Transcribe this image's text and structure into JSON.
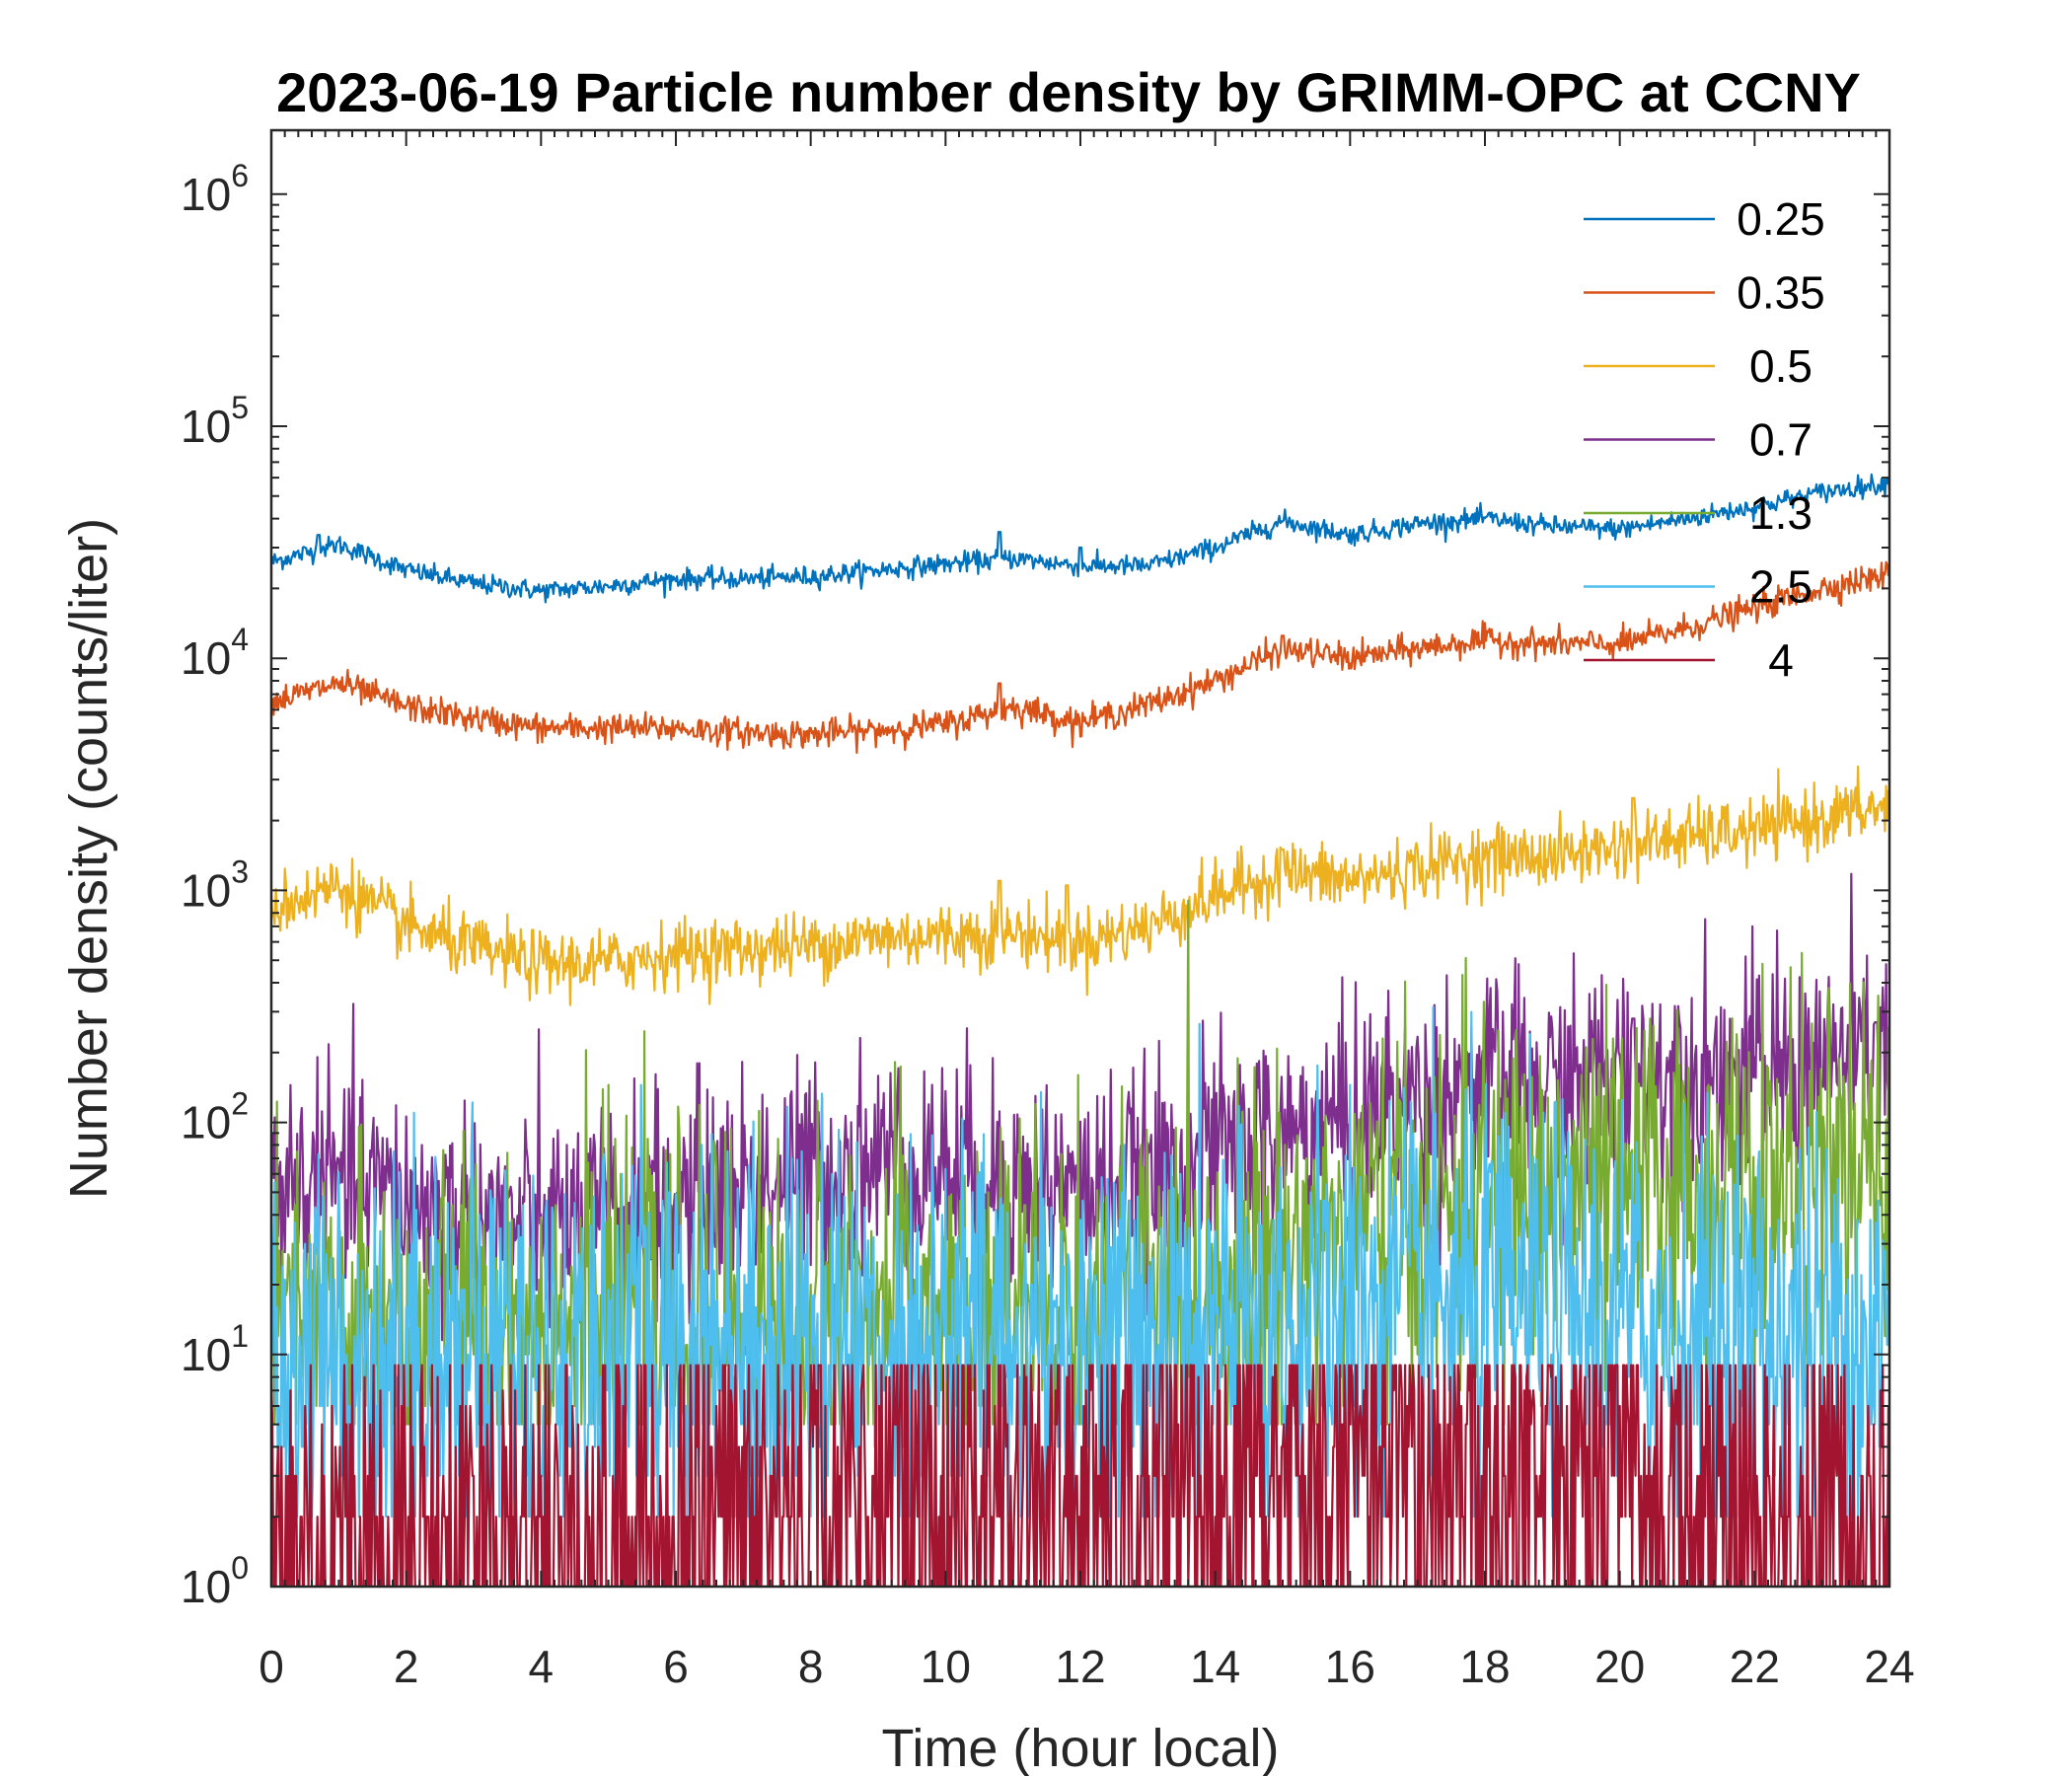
{
  "chart_data": {
    "type": "line",
    "title": "2023-06-19 Particle number density by GRIMM-OPC at CCNY",
    "xlabel": "Time (hour local)",
    "ylabel": "Number density (counts/liter)",
    "xlim": [
      0,
      24
    ],
    "ylim": [
      1,
      2000000
    ],
    "yscale": "log",
    "xticks": [
      0,
      2,
      4,
      6,
      8,
      10,
      12,
      14,
      16,
      18,
      20,
      22,
      24
    ],
    "xtick_labels": [
      "0",
      "2",
      "4",
      "6",
      "8",
      "10",
      "12",
      "14",
      "16",
      "18",
      "20",
      "22",
      "24"
    ],
    "yticks": [
      {
        "value": 1,
        "base": "10",
        "exp": "0"
      },
      {
        "value": 10,
        "base": "10",
        "exp": "1"
      },
      {
        "value": 100,
        "base": "10",
        "exp": "2"
      },
      {
        "value": 1000,
        "base": "10",
        "exp": "3"
      },
      {
        "value": 10000,
        "base": "10",
        "exp": "4"
      },
      {
        "value": 100000,
        "base": "10",
        "exp": "5"
      },
      {
        "value": 1000000,
        "base": "10",
        "exp": "6"
      }
    ],
    "legend_position": "top-right",
    "series": [
      {
        "name": "0.25",
        "color": "#0072BD",
        "noise": 0.05,
        "spikes": [
          [
            0.7,
            34000
          ],
          [
            10.8,
            35000
          ],
          [
            12.0,
            30000
          ]
        ],
        "x": [
          0,
          1,
          2,
          3,
          4,
          5,
          6,
          7,
          8,
          9,
          10,
          11,
          12,
          13,
          14,
          15,
          16,
          17,
          18,
          19,
          20,
          21,
          22,
          23,
          24
        ],
        "values": [
          26000,
          31000,
          24000,
          21000,
          19500,
          20500,
          22000,
          22000,
          22500,
          24000,
          25500,
          27000,
          25000,
          25000,
          30000,
          39000,
          34000,
          38000,
          40000,
          37000,
          36000,
          40000,
          45000,
          52000,
          57000
        ]
      },
      {
        "name": "0.35",
        "color": "#D95319",
        "noise": 0.07,
        "spikes": [
          [
            10.8,
            7800
          ],
          [
            15.0,
            12500
          ]
        ],
        "x": [
          0,
          1,
          2,
          3,
          4,
          5,
          6,
          7,
          8,
          9,
          10,
          11,
          12,
          13,
          14,
          15,
          16,
          17,
          18,
          19,
          20,
          21,
          22,
          23,
          24
        ],
        "values": [
          6500,
          7800,
          6200,
          5500,
          5000,
          5000,
          5000,
          4800,
          4700,
          4900,
          5200,
          6200,
          5300,
          6300,
          8000,
          11000,
          10000,
          11000,
          12000,
          11500,
          11500,
          13500,
          16500,
          20000,
          23000
        ]
      },
      {
        "name": "0.5",
        "color": "#EDB120",
        "noise": 0.16,
        "spikes": [
          [
            10.8,
            1100
          ],
          [
            11.8,
            1050
          ],
          [
            15.0,
            1500
          ],
          [
            20.2,
            2500
          ]
        ],
        "x": [
          0,
          1,
          2,
          3,
          4,
          5,
          6,
          7,
          8,
          9,
          10,
          11,
          12,
          13,
          14,
          15,
          16,
          17,
          18,
          19,
          20,
          21,
          22,
          23,
          24
        ],
        "values": [
          850,
          1050,
          700,
          560,
          480,
          490,
          540,
          560,
          580,
          630,
          640,
          660,
          600,
          700,
          950,
          1200,
          1100,
          1250,
          1400,
          1400,
          1550,
          1700,
          1800,
          2050,
          2300
        ]
      },
      {
        "name": "0.7",
        "color": "#7E2F8E",
        "noise": 0.55,
        "spikes": [
          [
            20.2,
            280
          ],
          [
            23.8,
            270
          ]
        ],
        "x": [
          0,
          1,
          2,
          3,
          4,
          5,
          6,
          7,
          8,
          9,
          10,
          11,
          12,
          13,
          14,
          15,
          16,
          17,
          18,
          19,
          20,
          21,
          22,
          23,
          24
        ],
        "values": [
          55,
          55,
          45,
          38,
          35,
          40,
          45,
          55,
          60,
          70,
          65,
          55,
          50,
          55,
          75,
          85,
          105,
          130,
          145,
          140,
          160,
          170,
          165,
          185,
          200
        ]
      },
      {
        "name": "1.3",
        "color": "#77AC30",
        "noise": 0.9,
        "floor": 5,
        "x": [
          0,
          2,
          4,
          6,
          8,
          10,
          12,
          14,
          16,
          18,
          20,
          22,
          24
        ],
        "values": [
          12,
          13,
          14,
          14,
          15,
          15,
          16,
          20,
          35,
          45,
          50,
          52,
          55
        ]
      },
      {
        "name": "2.5",
        "color": "#4DBEEE",
        "noise": 1.05,
        "floor": 2,
        "x": [
          0,
          2,
          4,
          6,
          8,
          10,
          12,
          14,
          16,
          18,
          20,
          22,
          24
        ],
        "values": [
          9,
          10,
          10,
          11,
          11,
          12,
          11,
          11,
          15,
          16,
          14,
          12,
          12
        ]
      },
      {
        "name": "4",
        "color": "#A2142F",
        "noise": 1.4,
        "floor": 1,
        "cap": 9,
        "x": [
          0,
          2,
          4,
          6,
          8,
          10,
          12,
          14,
          16,
          18,
          20,
          22,
          24
        ],
        "values": [
          1.3,
          1.5,
          1.6,
          1.8,
          2.2,
          2.4,
          2.2,
          2.5,
          3.0,
          3.0,
          2.4,
          2.0,
          1.6
        ]
      }
    ]
  }
}
